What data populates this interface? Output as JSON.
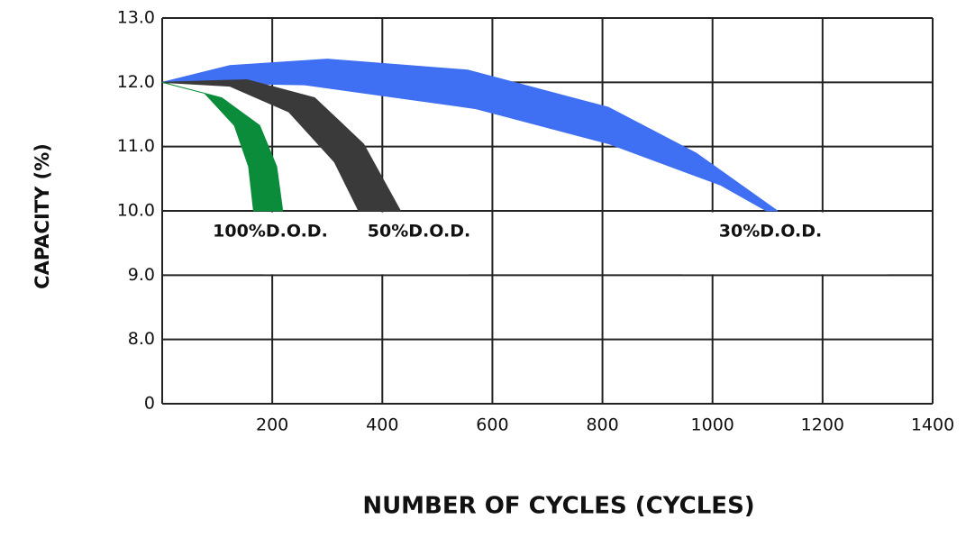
{
  "chart_data": {
    "type": "band",
    "x_label": "NUMBER OF CYCLES (CYCLES)",
    "y_label": "CAPACITY (%)",
    "xlim": [
      0,
      1400
    ],
    "xticks": [
      200,
      400,
      600,
      800,
      1000,
      1200,
      1400
    ],
    "ylim": [
      0,
      13
    ],
    "yticks": [
      {
        "value": 0,
        "label": "0"
      },
      {
        "value": 8,
        "label": "8.0"
      },
      {
        "value": 9,
        "label": "9.0"
      },
      {
        "value": 10,
        "label": "10.0"
      },
      {
        "value": 11,
        "label": "11.0"
      },
      {
        "value": 12,
        "label": "12.0"
      },
      {
        "value": 13,
        "label": "13.0"
      }
    ],
    "grid": true,
    "series": [
      {
        "name": "30%D.O.D.",
        "color": "#3f6ff2",
        "outer": {
          "x": [
            0,
            123,
            300,
            555,
            811,
            970,
            1118
          ],
          "values": [
            12,
            12.26,
            12.36,
            12.19,
            11.61,
            10.9,
            10
          ]
        },
        "inner": {
          "x": [
            0,
            259,
            570,
            813,
            1015,
            1098
          ],
          "values": [
            12,
            11.96,
            11.59,
            11.04,
            10.4,
            10
          ]
        }
      },
      {
        "name": "50%D.O.D.",
        "color": "#3a3a3a",
        "outer": {
          "x": [
            0,
            154,
            277,
            366,
            433
          ],
          "values": [
            12,
            12.04,
            11.76,
            11.04,
            10
          ]
        },
        "inner": {
          "x": [
            0,
            123,
            230,
            313,
            357
          ],
          "values": [
            12,
            11.94,
            11.54,
            10.76,
            10
          ]
        }
      },
      {
        "name": "100%D.O.D.",
        "color": "#0a8c3a",
        "outer": {
          "x": [
            0,
            108,
            177,
            208,
            219
          ],
          "values": [
            12,
            11.76,
            11.33,
            10.69,
            10
          ]
        },
        "inner": {
          "x": [
            0,
            77,
            131,
            157,
            166
          ],
          "values": [
            12,
            11.83,
            11.33,
            10.69,
            10
          ]
        }
      }
    ]
  }
}
